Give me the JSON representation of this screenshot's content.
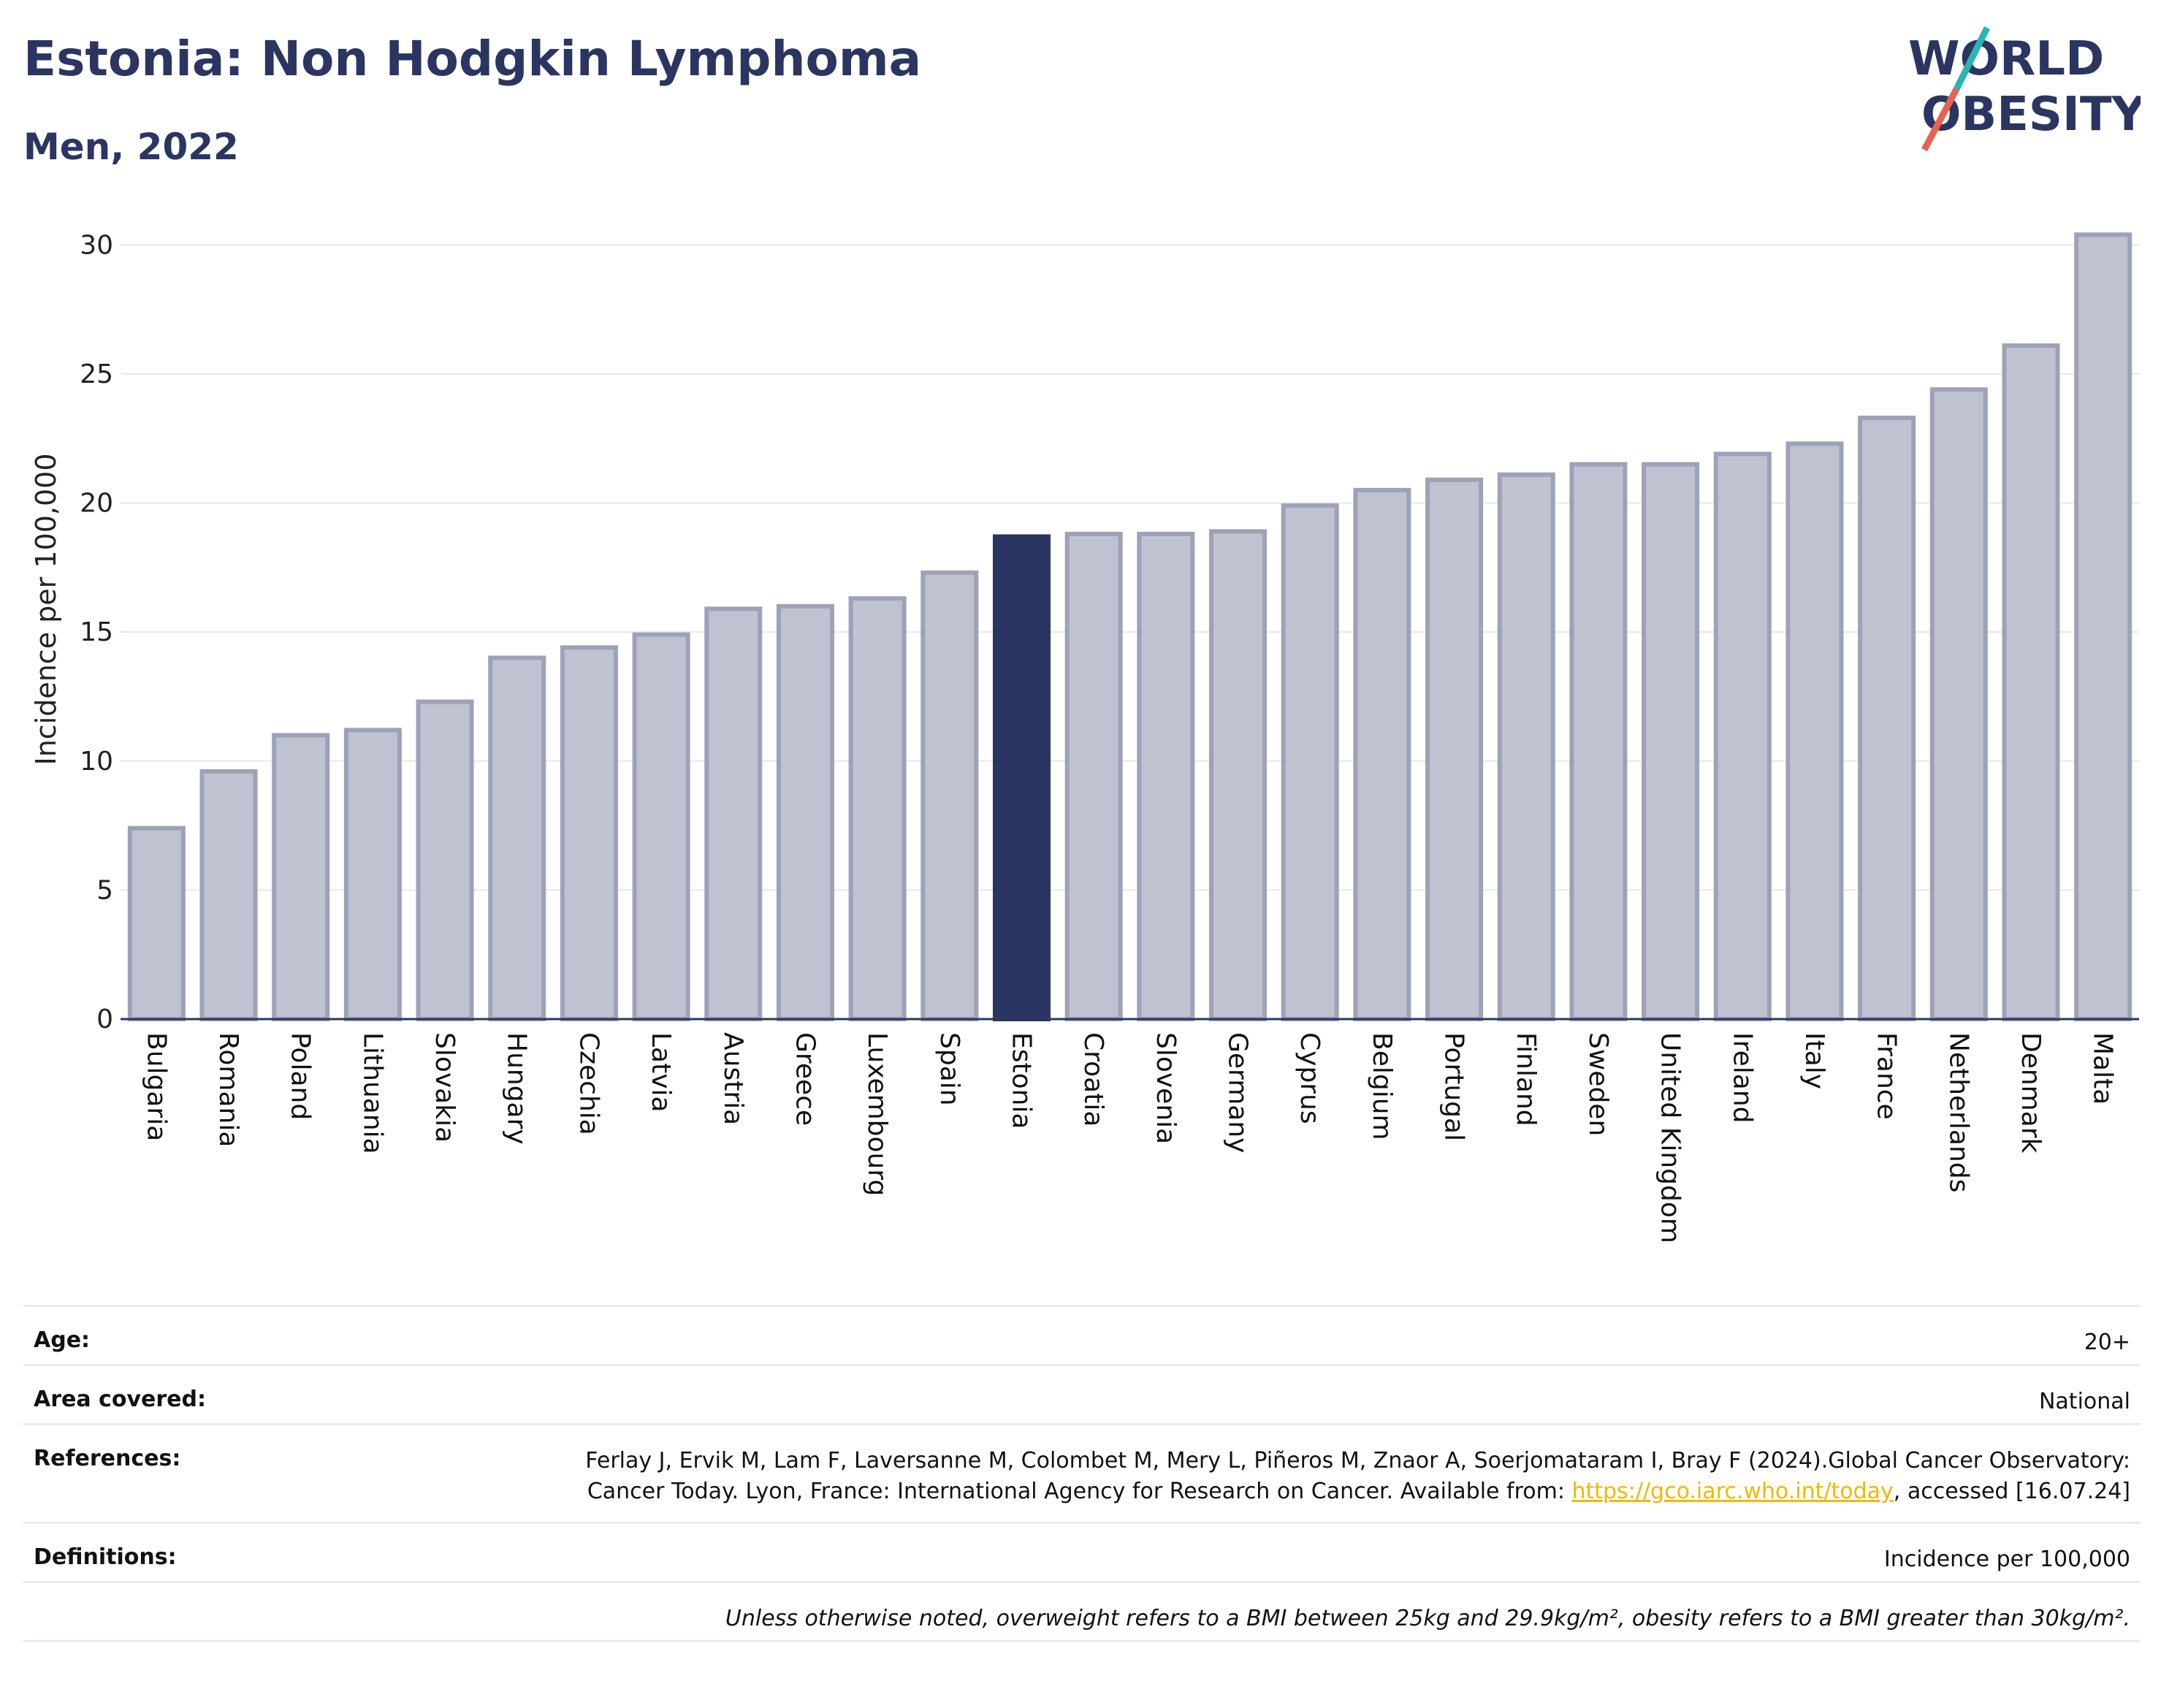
{
  "header": {
    "title": "Estonia: Non Hodgkin Lymphoma",
    "subtitle": "Men, 2022"
  },
  "logo": {
    "text_top": "WORLD",
    "text_bottom": "OBESITY",
    "accent_colors": [
      "#2bb5b0",
      "#e8624f"
    ]
  },
  "colors": {
    "highlight": "#2b3561",
    "bar": "#bfc2d0",
    "bar_border": "#9da2b8",
    "grid": "#e6e8ef",
    "axis": "#2b3561",
    "link": "#f2b705"
  },
  "chart_data": {
    "type": "bar",
    "ylabel": "Incidence per 100,000",
    "xlabel": "",
    "ylim": [
      0,
      31
    ],
    "yticks": [
      0,
      5,
      10,
      15,
      20,
      25,
      30
    ],
    "grid": true,
    "highlight_category": "Estonia",
    "categories": [
      "Bulgaria",
      "Romania",
      "Poland",
      "Lithuania",
      "Slovakia",
      "Hungary",
      "Czechia",
      "Latvia",
      "Austria",
      "Greece",
      "Luxembourg",
      "Spain",
      "Estonia",
      "Croatia",
      "Slovenia",
      "Germany",
      "Cyprus",
      "Belgium",
      "Portugal",
      "Finland",
      "Sweden",
      "United Kingdom",
      "Ireland",
      "Italy",
      "France",
      "Netherlands",
      "Denmark",
      "Malta"
    ],
    "values": [
      7.4,
      9.6,
      11.0,
      11.2,
      12.3,
      14.0,
      14.4,
      14.9,
      15.9,
      16.0,
      16.3,
      17.3,
      18.7,
      18.8,
      18.8,
      18.9,
      19.9,
      20.5,
      20.9,
      21.1,
      21.5,
      21.5,
      21.9,
      22.3,
      23.3,
      24.4,
      26.1,
      30.4
    ]
  },
  "meta": {
    "age_label": "Age:",
    "age_value": "20+",
    "area_label": "Area covered:",
    "area_value": "National",
    "references_label": "References:",
    "references_text_1": "Ferlay J, Ervik M, Lam F, Laversanne M, Colombet M, Mery L, Piñeros M, Znaor A, Soerjomataram I, Bray F (2024).Global Cancer Observatory: Cancer Today. Lyon, France: International Agency for Research on Cancer. Available from: ",
    "references_link": "https://gco.iarc.who.int/today",
    "references_text_2": ", accessed [16.07.24]",
    "definitions_label": "Definitions:",
    "definitions_value": "Incidence per 100,000",
    "note": "Unless otherwise noted, overweight refers to a BMI between 25kg and 29.9kg/m², obesity refers to a BMI greater than 30kg/m²."
  }
}
